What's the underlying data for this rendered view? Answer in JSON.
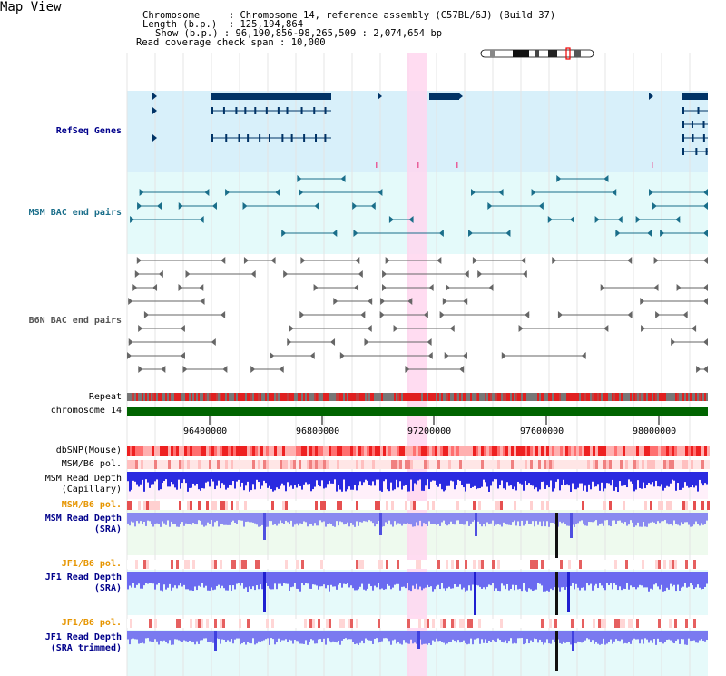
{
  "page": {
    "title": "Map View"
  },
  "info": {
    "chromosome_label": "Chromosome",
    "chromosome_value": "Chromosome 14, reference assembly (C57BL/6J) (Build 37)",
    "length_label": "Length (b.p.)",
    "length_value": "125,194,864",
    "show_label": "Show (b.p.)",
    "show_value": "96,190,856-98,265,509 : 2,074,654 bp",
    "coverage_label": "Read coverage check span",
    "coverage_value": "10,000"
  },
  "tracks": {
    "refseq": "RefSeq Genes",
    "msm_bac": "MSM BAC end pairs",
    "b6n_bac": "B6N BAC end pairs",
    "repeat": "Repeat",
    "chromosome": "chromosome 14",
    "dbsnp": "dbSNP(Mouse)",
    "msm_b6_pol_1": "MSM/B6 pol.",
    "msm_depth_cap_1": "MSM Read Depth",
    "msm_depth_cap_2": "(Capillary)",
    "msm_b6_pol_2": "MSM/B6 pol.",
    "msm_depth_sra_1": "MSM Read Depth",
    "msm_depth_sra_2": "(SRA)",
    "jf1_b6_pol_1": "JF1/B6 pol.",
    "jf1_depth_sra_1": "JF1 Read Depth",
    "jf1_depth_sra_2": "(SRA)",
    "jf1_b6_pol_2": "JF1/B6 pol.",
    "jf1_depth_trim_1": "JF1 Read Depth",
    "jf1_depth_trim_2": "(SRA trimmed)"
  },
  "axis": {
    "ticks": [
      "96400000",
      "96800000",
      "97200000",
      "97600000",
      "98000000"
    ]
  },
  "colors": {
    "refseq_bg": "#d8f0fa",
    "msm_bac_bg": "#e4fafa",
    "gene": "#003366",
    "msm_feature": "#1a6e8a",
    "b6n_feature": "#666666",
    "chromosome_bar": "#006400",
    "highlight": "#ffd6ee",
    "depth_blue": "#1a1ae6",
    "depth_light": "#8080f0",
    "pol_orange": "#e69500",
    "label_navy": "#00008b"
  }
}
